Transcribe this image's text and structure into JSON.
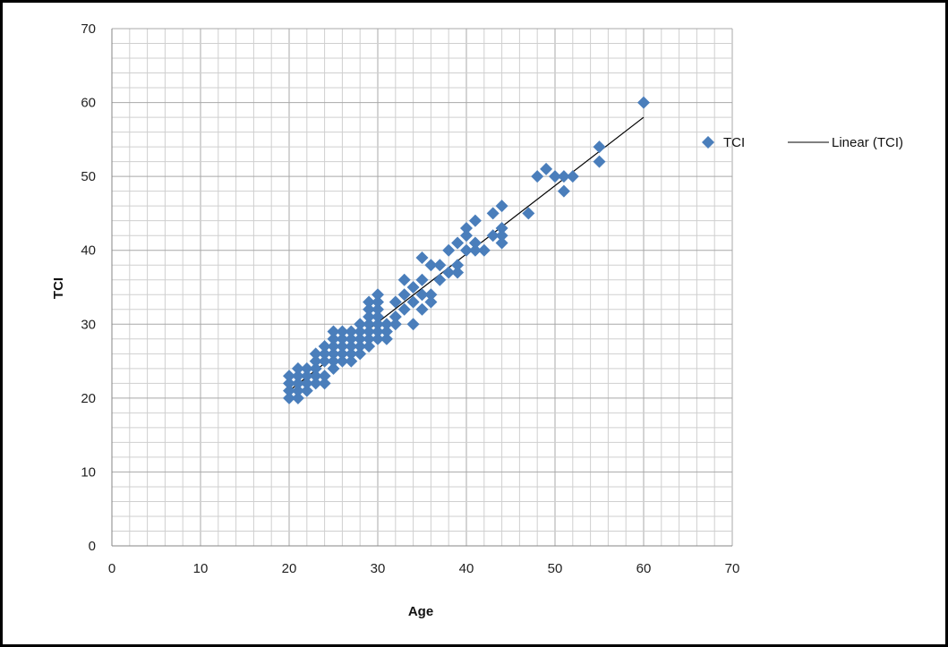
{
  "chart_data": {
    "type": "scatter",
    "title": "",
    "xlabel": "Age",
    "ylabel": "TCI",
    "xlim": [
      0,
      70
    ],
    "ylim": [
      0,
      70
    ],
    "xticks": [
      "0",
      "10",
      "20",
      "30",
      "40",
      "50",
      "60",
      "70"
    ],
    "yticks": [
      "0",
      "10",
      "20",
      "30",
      "40",
      "50",
      "60",
      "70"
    ],
    "grid": "major and minor",
    "legend_position": "right",
    "marker_color": "#4a7ebb",
    "trend_color": "#000000",
    "series": [
      {
        "name": "TCI",
        "marker": "diamond",
        "points": [
          [
            20,
            20
          ],
          [
            20,
            21
          ],
          [
            20,
            22
          ],
          [
            20,
            23
          ],
          [
            21,
            20
          ],
          [
            21,
            21
          ],
          [
            21,
            22
          ],
          [
            21,
            23
          ],
          [
            21,
            24
          ],
          [
            22,
            21
          ],
          [
            22,
            22
          ],
          [
            22,
            23
          ],
          [
            22,
            24
          ],
          [
            23,
            22
          ],
          [
            23,
            23
          ],
          [
            23,
            24
          ],
          [
            23,
            25
          ],
          [
            23,
            26
          ],
          [
            24,
            22
          ],
          [
            24,
            23
          ],
          [
            24,
            25
          ],
          [
            24,
            26
          ],
          [
            24,
            27
          ],
          [
            25,
            24
          ],
          [
            25,
            25
          ],
          [
            25,
            26
          ],
          [
            25,
            27
          ],
          [
            25,
            28
          ],
          [
            25,
            29
          ],
          [
            26,
            25
          ],
          [
            26,
            26
          ],
          [
            26,
            27
          ],
          [
            26,
            28
          ],
          [
            26,
            29
          ],
          [
            27,
            25
          ],
          [
            27,
            26
          ],
          [
            27,
            27
          ],
          [
            27,
            28
          ],
          [
            27,
            29
          ],
          [
            28,
            26
          ],
          [
            28,
            27
          ],
          [
            28,
            28
          ],
          [
            28,
            29
          ],
          [
            28,
            30
          ],
          [
            29,
            27
          ],
          [
            29,
            28
          ],
          [
            29,
            29
          ],
          [
            29,
            30
          ],
          [
            29,
            31
          ],
          [
            29,
            32
          ],
          [
            29,
            33
          ],
          [
            30,
            28
          ],
          [
            30,
            29
          ],
          [
            30,
            30
          ],
          [
            30,
            31
          ],
          [
            30,
            32
          ],
          [
            30,
            33
          ],
          [
            30,
            34
          ],
          [
            31,
            28
          ],
          [
            31,
            29
          ],
          [
            31,
            30
          ],
          [
            32,
            30
          ],
          [
            32,
            31
          ],
          [
            32,
            33
          ],
          [
            33,
            32
          ],
          [
            33,
            34
          ],
          [
            33,
            36
          ],
          [
            34,
            30
          ],
          [
            34,
            33
          ],
          [
            34,
            35
          ],
          [
            35,
            32
          ],
          [
            35,
            34
          ],
          [
            35,
            36
          ],
          [
            35,
            39
          ],
          [
            36,
            33
          ],
          [
            36,
            34
          ],
          [
            36,
            38
          ],
          [
            37,
            36
          ],
          [
            37,
            38
          ],
          [
            38,
            37
          ],
          [
            38,
            40
          ],
          [
            39,
            37
          ],
          [
            39,
            38
          ],
          [
            39,
            41
          ],
          [
            40,
            40
          ],
          [
            40,
            42
          ],
          [
            40,
            43
          ],
          [
            41,
            40
          ],
          [
            41,
            41
          ],
          [
            41,
            44
          ],
          [
            42,
            40
          ],
          [
            43,
            42
          ],
          [
            43,
            45
          ],
          [
            44,
            41
          ],
          [
            44,
            42
          ],
          [
            44,
            43
          ],
          [
            44,
            46
          ],
          [
            47,
            45
          ],
          [
            48,
            50
          ],
          [
            49,
            51
          ],
          [
            50,
            50
          ],
          [
            51,
            48
          ],
          [
            51,
            50
          ],
          [
            52,
            50
          ],
          [
            55,
            52
          ],
          [
            55,
            54
          ],
          [
            60,
            60
          ]
        ]
      },
      {
        "name": "Linear (TCI)",
        "type": "trendline",
        "x": [
          20,
          60
        ],
        "y": [
          21,
          58
        ]
      }
    ]
  },
  "legend": {
    "items": [
      "TCI",
      "Linear (TCI)"
    ]
  }
}
